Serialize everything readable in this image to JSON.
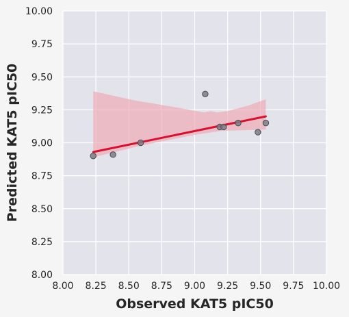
{
  "chart_data": {
    "type": "scatter",
    "title": "",
    "xlabel": "Observed KAT5 pIC50",
    "ylabel": "Predicted KAT5 pIC50",
    "xlim": [
      8.0,
      10.0
    ],
    "ylim": [
      8.0,
      10.0
    ],
    "xticks": [
      "8.00",
      "8.25",
      "8.50",
      "8.75",
      "9.00",
      "9.25",
      "9.50",
      "9.75",
      "10.00"
    ],
    "yticks": [
      "8.00",
      "8.25",
      "8.50",
      "8.75",
      "9.00",
      "9.25",
      "9.50",
      "9.75",
      "10.00"
    ],
    "grid": true,
    "points": [
      {
        "x": 8.23,
        "y": 8.9
      },
      {
        "x": 8.38,
        "y": 8.91
      },
      {
        "x": 8.59,
        "y": 9.0
      },
      {
        "x": 9.08,
        "y": 9.37
      },
      {
        "x": 9.19,
        "y": 9.12
      },
      {
        "x": 9.22,
        "y": 9.12
      },
      {
        "x": 9.33,
        "y": 9.15
      },
      {
        "x": 9.48,
        "y": 9.08
      },
      {
        "x": 9.54,
        "y": 9.15
      }
    ],
    "regression": {
      "x": [
        8.23,
        9.54
      ],
      "y": [
        8.93,
        9.2
      ],
      "ci_upper": [
        {
          "x": 8.23,
          "y": 9.39
        },
        {
          "x": 8.55,
          "y": 9.32
        },
        {
          "x": 8.85,
          "y": 9.27
        },
        {
          "x": 9.07,
          "y": 9.23
        },
        {
          "x": 9.12,
          "y": 9.24
        },
        {
          "x": 9.17,
          "y": 9.23
        },
        {
          "x": 9.25,
          "y": 9.24
        },
        {
          "x": 9.4,
          "y": 9.28
        },
        {
          "x": 9.54,
          "y": 9.33
        }
      ],
      "ci_lower": [
        {
          "x": 8.23,
          "y": 8.89
        },
        {
          "x": 8.6,
          "y": 8.98
        },
        {
          "x": 9.0,
          "y": 9.06
        },
        {
          "x": 9.2,
          "y": 9.09
        },
        {
          "x": 9.54,
          "y": 9.1
        }
      ]
    },
    "colors": {
      "background": "#e3e3ec",
      "grid": "#ffffff",
      "point_fill": "#7d7d85",
      "point_edge": "#4a4a50",
      "line": "#d7112e",
      "band": "#f0a6b2"
    }
  }
}
